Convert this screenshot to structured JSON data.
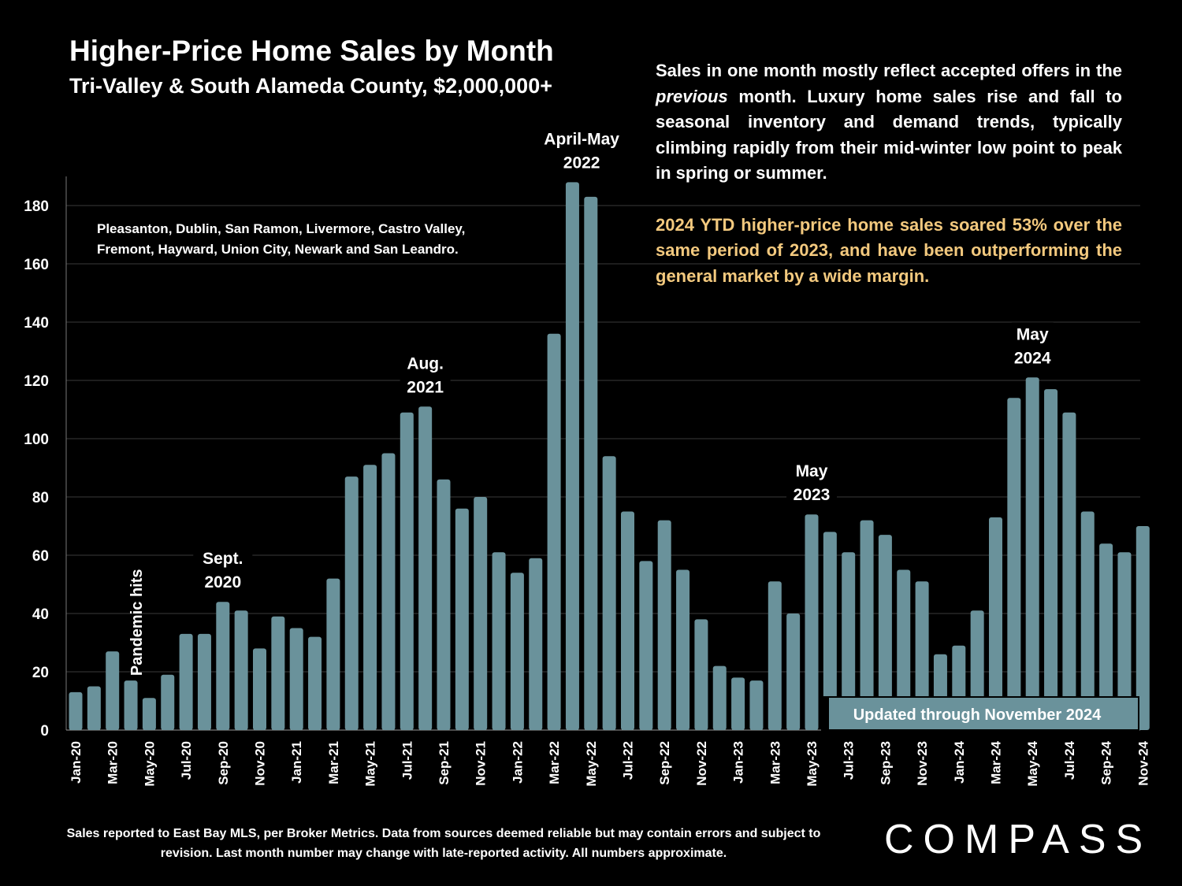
{
  "header": {
    "title": "Higher-Price Home Sales by Month",
    "subtitle": "Tri-Valley & South Alameda County, $2,000,000+"
  },
  "commentary": {
    "p1_before": "Sales in one month mostly reflect accepted offers in the ",
    "p1_italic": "previous",
    "p1_after": " month. Luxury home sales rise and fall to seasonal inventory and demand trends, typically climbing rapidly from their mid-winter low point to peak in spring or summer.",
    "p2": "2024 YTD higher-price home sales soared 53% over the same period of 2023, and have been outperforming the general market by a wide margin."
  },
  "areas_note": "Pleasanton, Dublin, San Ramon, Livermore, Castro Valley, Fremont, Hayward, Union City, Newark and San Leandro.",
  "footnote": "Sales reported to East Bay MLS, per Broker Metrics. Data from sources deemed reliable but may contain errors and subject to revision. Last month number may change with late-reported activity. All numbers approximate.",
  "logo": "COMPASS",
  "colors": {
    "background": "#000000",
    "bar": "#6a929b",
    "gridline": "#3a3a3a",
    "highlight_text": "#f3c97e",
    "update_box": "#6a929b"
  },
  "chart_data": {
    "type": "bar",
    "title": "Higher-Price Home Sales by Month",
    "xlabel": "",
    "ylabel": "",
    "ylim": [
      0,
      190
    ],
    "yticks": [
      0,
      20,
      40,
      60,
      80,
      100,
      120,
      140,
      160,
      180
    ],
    "grid": true,
    "categories": [
      "Jan-20",
      "Feb-20",
      "Mar-20",
      "Apr-20",
      "May-20",
      "Jun-20",
      "Jul-20",
      "Aug-20",
      "Sep-20",
      "Oct-20",
      "Nov-20",
      "Dec-20",
      "Jan-21",
      "Feb-21",
      "Mar-21",
      "Apr-21",
      "May-21",
      "Jun-21",
      "Jul-21",
      "Aug-21",
      "Sep-21",
      "Oct-21",
      "Nov-21",
      "Dec-21",
      "Jan-22",
      "Feb-22",
      "Mar-22",
      "Apr-22",
      "May-22",
      "Jun-22",
      "Jul-22",
      "Aug-22",
      "Sep-22",
      "Oct-22",
      "Nov-22",
      "Dec-22",
      "Jan-23",
      "Feb-23",
      "Mar-23",
      "Apr-23",
      "May-23",
      "Jun-23",
      "Jul-23",
      "Aug-23",
      "Sep-23",
      "Oct-23",
      "Nov-23",
      "Dec-23",
      "Jan-24",
      "Feb-24",
      "Mar-24",
      "Apr-24",
      "May-24",
      "Jun-24",
      "Jul-24",
      "Aug-24",
      "Sep-24",
      "Oct-24",
      "Nov-24"
    ],
    "values": [
      13,
      15,
      27,
      17,
      11,
      19,
      33,
      33,
      44,
      41,
      28,
      39,
      35,
      32,
      52,
      87,
      91,
      95,
      109,
      111,
      86,
      76,
      80,
      61,
      54,
      59,
      136,
      188,
      183,
      94,
      75,
      58,
      72,
      55,
      38,
      22,
      18,
      17,
      51,
      40,
      74,
      68,
      61,
      72,
      67,
      55,
      51,
      26,
      29,
      41,
      73,
      114,
      121,
      117,
      109,
      75,
      64,
      61,
      70
    ],
    "xtick_labels": [
      "Jan-20",
      "Mar-20",
      "May-20",
      "Jul-20",
      "Sep-20",
      "Nov-20",
      "Jan-21",
      "Mar-21",
      "May-21",
      "Jul-21",
      "Sep-21",
      "Nov-21",
      "Jan-22",
      "Mar-22",
      "May-22",
      "Jul-22",
      "Sep-22",
      "Nov-22",
      "Jan-23",
      "Mar-23",
      "May-23",
      "Jul-23",
      "Sep-23",
      "Nov-23",
      "Jan-24",
      "Mar-24",
      "May-24",
      "Jul-24",
      "Sep-24",
      "Nov-24"
    ],
    "annotations": [
      {
        "index": 3,
        "lines": [
          "Pandemic hits"
        ],
        "vertical": true
      },
      {
        "index": 8,
        "lines": [
          "Sept.",
          "2020"
        ]
      },
      {
        "index": 19,
        "lines": [
          "Aug.",
          "2021"
        ]
      },
      {
        "index": 27.5,
        "lines": [
          "April-May",
          "2022"
        ]
      },
      {
        "index": 40,
        "lines": [
          "May",
          "2023"
        ]
      },
      {
        "index": 52,
        "lines": [
          "May",
          "2024"
        ]
      }
    ],
    "update_note": "Updated through November 2024"
  }
}
